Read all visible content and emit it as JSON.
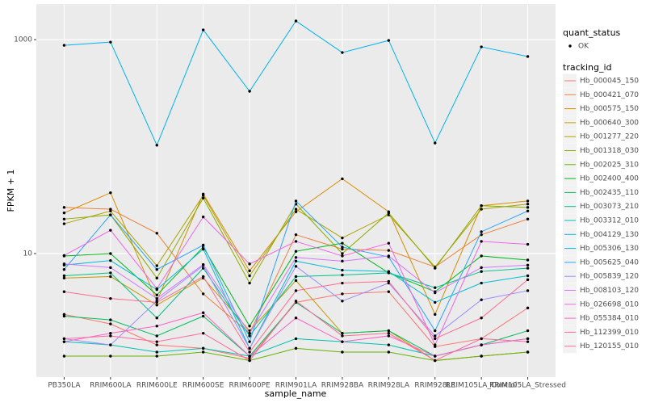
{
  "chart_data": {
    "type": "line",
    "x_label": "sample_name",
    "y_label": "FPKM + 1",
    "categories": [
      "PB350LA",
      "RRIM600LA",
      "RRIM600LE",
      "RRIM600SE",
      "RRIM600PE",
      "RRIM901LA",
      "RRIM928BA",
      "RRIM928LA",
      "RRIM928LE",
      "RRIM105LA_Control",
      "RRIM105LA_Stressed"
    ],
    "log_y": true,
    "ylim": [
      0.7,
      2150
    ],
    "yticks": [
      10,
      1000
    ],
    "grid": true,
    "point_legend": {
      "title": "quant_status",
      "label": "OK",
      "color": "#000000"
    },
    "legend_title": "tracking_id",
    "legend_position": "right",
    "series": [
      {
        "name": "Hb_000045_150",
        "color": "#F8766D",
        "values": [
          2.7,
          2.2,
          1.4,
          1.3,
          1.05,
          3.5,
          4.2,
          4.4,
          1.35,
          1.6,
          3.1
        ]
      },
      {
        "name": "Hb_000421_070",
        "color": "#EC8239",
        "values": [
          27,
          26,
          15.5,
          4.2,
          1.8,
          15,
          11,
          10.7,
          7.5,
          15,
          21
        ]
      },
      {
        "name": "Hb_000575_150",
        "color": "#DB8E00",
        "values": [
          24,
          37,
          3.6,
          36,
          6.9,
          24.6,
          50,
          24.6,
          2.7,
          28,
          31
        ]
      },
      {
        "name": "Hb_000640_300",
        "color": "#C79800",
        "values": [
          5.9,
          6.1,
          3.3,
          5.9,
          1.9,
          5.6,
          1.8,
          1.9,
          1.0,
          1.1,
          1.2
        ]
      },
      {
        "name": "Hb_001277_220",
        "color": "#AEA200",
        "values": [
          19,
          25,
          7.7,
          35,
          6.2,
          26,
          14,
          23,
          7.5,
          26,
          29
        ]
      },
      {
        "name": "Hb_001318_030",
        "color": "#8EAB00",
        "values": [
          21,
          23,
          5.9,
          33,
          5.3,
          29,
          10,
          24,
          7.3,
          28,
          27
        ]
      },
      {
        "name": "Hb_002025_310",
        "color": "#64B200",
        "values": [
          1.1,
          1.1,
          1.1,
          1.2,
          1.0,
          1.3,
          1.2,
          1.2,
          1.0,
          1.1,
          1.2
        ]
      },
      {
        "name": "Hb_002400_400",
        "color": "#00B81B",
        "values": [
          9.5,
          10,
          4.1,
          11.5,
          2.1,
          10.5,
          12.5,
          6.6,
          4.4,
          9.5,
          8.7
        ]
      },
      {
        "name": "Hb_002435_110",
        "color": "#00BD5C",
        "values": [
          2.6,
          2.4,
          1.7,
          2.6,
          1.1,
          3.5,
          1.8,
          1.9,
          1.1,
          1.4,
          1.9
        ]
      },
      {
        "name": "Hb_003073_210",
        "color": "#00C08B",
        "values": [
          6.2,
          6.6,
          2.5,
          7.3,
          1.7,
          6.1,
          6.3,
          6.6,
          4.8,
          6.8,
          7.3
        ]
      },
      {
        "name": "Hb_003312_010",
        "color": "#00C1B2",
        "values": [
          1.5,
          1.4,
          1.2,
          1.3,
          1.1,
          1.6,
          1.5,
          1.4,
          1.1,
          1.4,
          1.6
        ]
      },
      {
        "name": "Hb_004129_130",
        "color": "#00BCD6",
        "values": [
          7.8,
          8.6,
          4.6,
          11,
          1.3,
          8.5,
          7.0,
          6.8,
          3.5,
          5.3,
          6.2
        ]
      },
      {
        "name": "Hb_005306_130",
        "color": "#00B3F2",
        "values": [
          885,
          947,
          103,
          1232,
          329,
          1493,
          757,
          982,
          108,
          855,
          695
        ]
      },
      {
        "name": "Hb_005625_040",
        "color": "#29A3FF",
        "values": [
          7.1,
          23,
          7.1,
          12,
          1.5,
          31,
          11.5,
          9.3,
          1.9,
          16,
          25
        ]
      },
      {
        "name": "Hb_005839_120",
        "color": "#9C8DFF",
        "values": [
          1.6,
          1.4,
          3.6,
          7.7,
          1.3,
          7.6,
          3.6,
          5.3,
          1.7,
          3.7,
          4.5
        ]
      },
      {
        "name": "Hb_008103_120",
        "color": "#D277FF",
        "values": [
          8,
          7.4,
          3.8,
          7.9,
          1.8,
          9.2,
          8.5,
          9.5,
          4.3,
          7.4,
          7.8
        ]
      },
      {
        "name": "Hb_026698_010",
        "color": "#F166E8",
        "values": [
          9.6,
          16.5,
          4.7,
          22,
          8.0,
          13,
          9.5,
          12.5,
          1.4,
          13,
          12.2
        ]
      },
      {
        "name": "Hb_055384_010",
        "color": "#FF61C7",
        "values": [
          1.5,
          1.8,
          2.1,
          2.8,
          1.1,
          2.5,
          1.5,
          1.7,
          1.1,
          1.4,
          1.6
        ]
      },
      {
        "name": "Hb_112399_010",
        "color": "#FF689E",
        "values": [
          1.6,
          1.7,
          1.5,
          1.8,
          1.0,
          3.6,
          1.7,
          1.8,
          1.0,
          1.6,
          1.5
        ]
      },
      {
        "name": "Hb_120155_010",
        "color": "#FF6C91",
        "values": [
          4.4,
          3.8,
          3.5,
          6.1,
          1.2,
          4.5,
          5.3,
          5.5,
          1.6,
          2.5,
          5.7
        ]
      }
    ]
  }
}
